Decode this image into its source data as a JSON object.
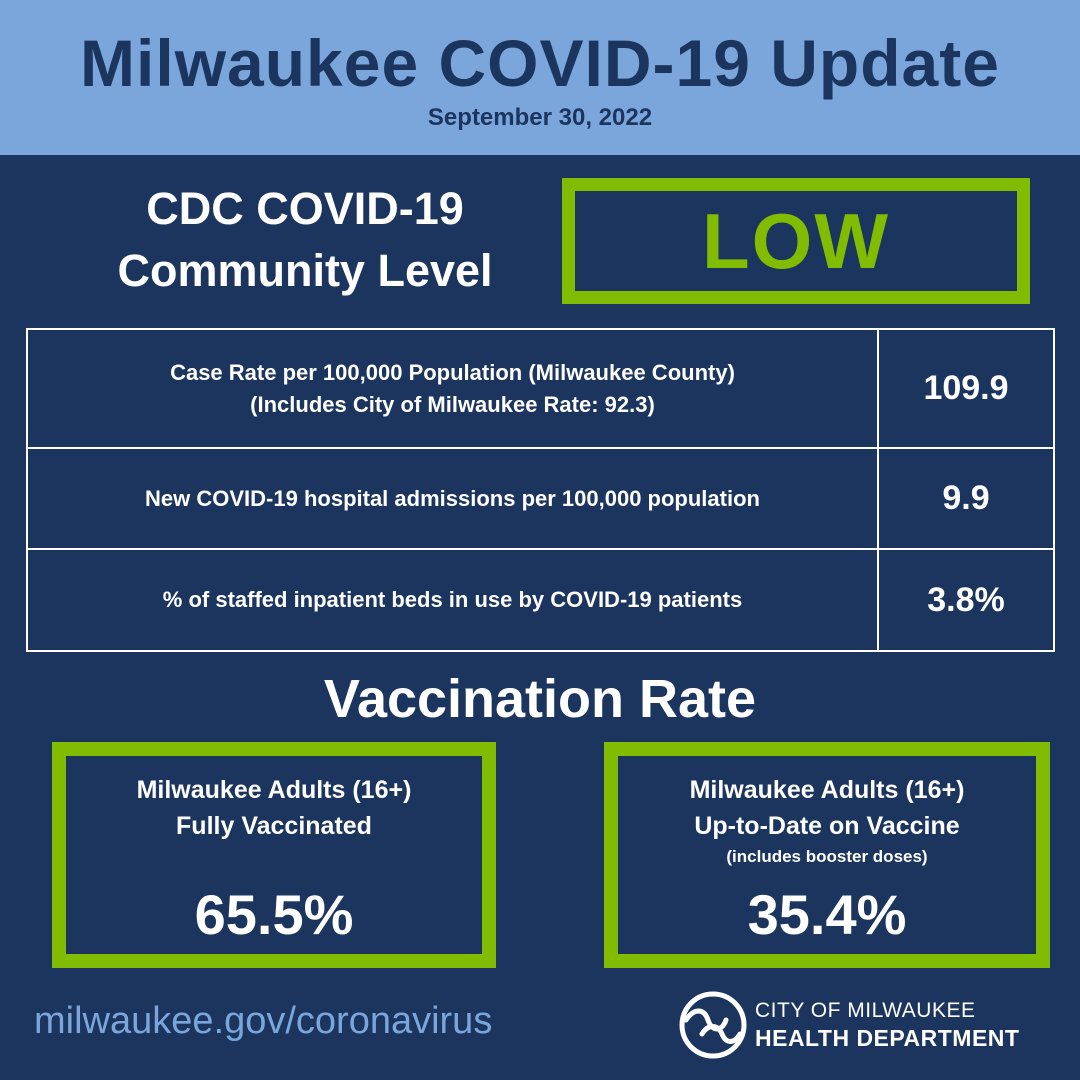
{
  "header": {
    "title": "Milwaukee COVID-19 Update",
    "date": "September 30, 2022"
  },
  "community_level": {
    "label_line1": "CDC COVID-19",
    "label_line2": "Community Level",
    "value": "LOW"
  },
  "metrics": [
    {
      "label": "Case Rate per 100,000 Population (Milwaukee County)",
      "sublabel": "(Includes City of Milwaukee Rate: 92.3)",
      "value": "109.9"
    },
    {
      "label": "New COVID-19 hospital admissions per 100,000 population",
      "value": "9.9"
    },
    {
      "label": "% of staffed inpatient beds in use by COVID-19 patients",
      "value": "3.8%"
    }
  ],
  "vaccination": {
    "title": "Vaccination Rate",
    "boxes": [
      {
        "line1": "Milwaukee Adults (16+)",
        "line2": "Fully Vaccinated",
        "value": "65.5%"
      },
      {
        "line1": "Milwaukee Adults (16+)",
        "line2": "Up-to-Date on Vaccine",
        "note": "(includes booster doses)",
        "value": "35.4%"
      }
    ]
  },
  "footer": {
    "url": "milwaukee.gov/coronavirus",
    "dept_line1": "CITY OF MILWAUKEE",
    "dept_line2": "HEALTH DEPARTMENT"
  },
  "colors": {
    "navy": "#1c355e",
    "light_blue": "#7aa6dc",
    "green": "#82bc00",
    "white": "#ffffff"
  }
}
